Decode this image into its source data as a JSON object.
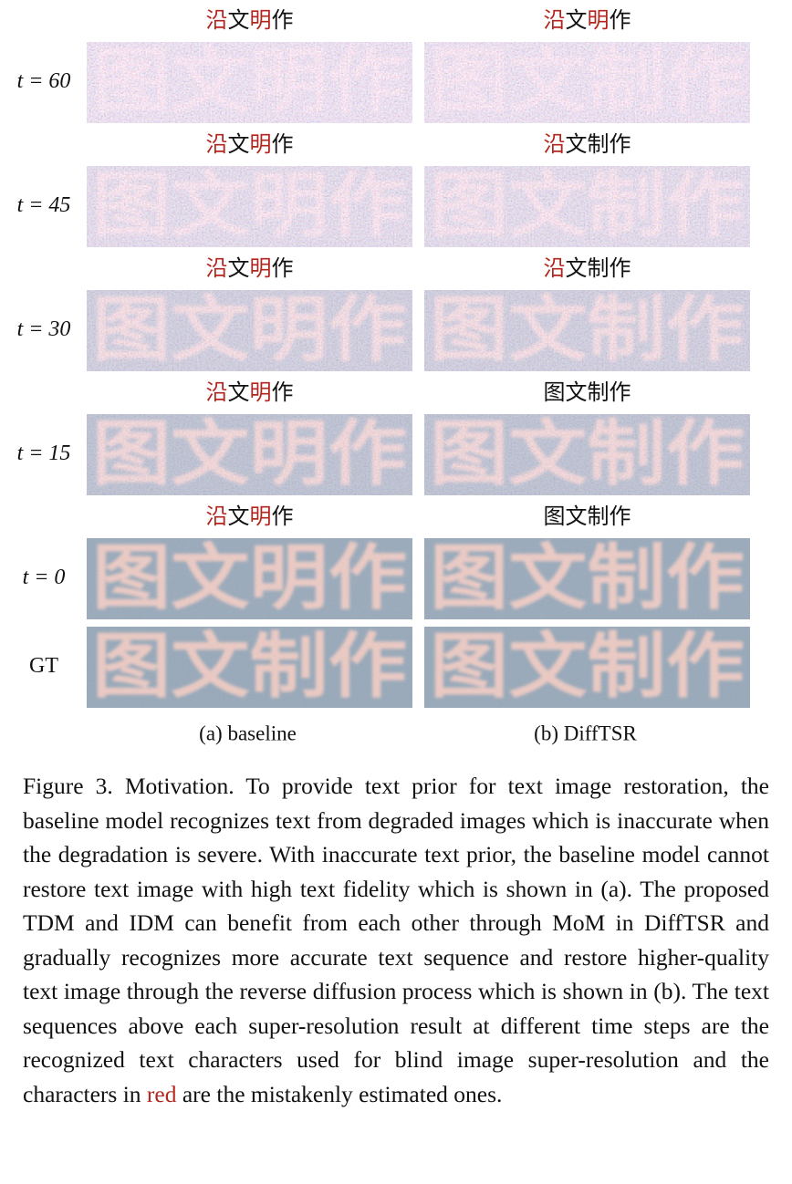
{
  "figure": {
    "rows": [
      {
        "label": "t = 60",
        "baseline": {
          "recognized": [
            {
              "text": "沿",
              "color": "#b3261e"
            },
            {
              "text": "文",
              "color": "#111111"
            },
            {
              "text": "明",
              "color": "#b3261e"
            },
            {
              "text": "作",
              "color": "#111111"
            }
          ],
          "image_text": "图文明作"
        },
        "difftsr": {
          "recognized": [
            {
              "text": "沿",
              "color": "#b3261e"
            },
            {
              "text": "文",
              "color": "#111111"
            },
            {
              "text": "明",
              "color": "#b3261e"
            },
            {
              "text": "作",
              "color": "#111111"
            }
          ],
          "image_text": "图文制作"
        }
      },
      {
        "label": "t = 45",
        "baseline": {
          "recognized": [
            {
              "text": "沿",
              "color": "#b3261e"
            },
            {
              "text": "文",
              "color": "#111111"
            },
            {
              "text": "明",
              "color": "#b3261e"
            },
            {
              "text": "作",
              "color": "#111111"
            }
          ],
          "image_text": "图文明作"
        },
        "difftsr": {
          "recognized": [
            {
              "text": "沿",
              "color": "#b3261e"
            },
            {
              "text": "文制作",
              "color": "#111111"
            }
          ],
          "image_text": "图文制作"
        }
      },
      {
        "label": "t = 30",
        "baseline": {
          "recognized": [
            {
              "text": "沿",
              "color": "#b3261e"
            },
            {
              "text": "文",
              "color": "#111111"
            },
            {
              "text": "明",
              "color": "#b3261e"
            },
            {
              "text": "作",
              "color": "#111111"
            }
          ],
          "image_text": "图文明作"
        },
        "difftsr": {
          "recognized": [
            {
              "text": "沿",
              "color": "#b3261e"
            },
            {
              "text": "文制作",
              "color": "#111111"
            }
          ],
          "image_text": "图文制作"
        }
      },
      {
        "label": "t = 15",
        "baseline": {
          "recognized": [
            {
              "text": "沿",
              "color": "#b3261e"
            },
            {
              "text": "文",
              "color": "#111111"
            },
            {
              "text": "明",
              "color": "#b3261e"
            },
            {
              "text": "作",
              "color": "#111111"
            }
          ],
          "image_text": "图文明作"
        },
        "difftsr": {
          "recognized": [
            {
              "text": "图文制作",
              "color": "#111111"
            }
          ],
          "image_text": "图文制作"
        }
      },
      {
        "label": "t = 0",
        "baseline": {
          "recognized": [
            {
              "text": "沿",
              "color": "#b3261e"
            },
            {
              "text": "文",
              "color": "#111111"
            },
            {
              "text": "明",
              "color": "#b3261e"
            },
            {
              "text": "作",
              "color": "#111111"
            }
          ],
          "image_text": "图文明作"
        },
        "difftsr": {
          "recognized": [
            {
              "text": "图文制作",
              "color": "#111111"
            }
          ],
          "image_text": "图文制作"
        }
      },
      {
        "label": "GT",
        "baseline": {
          "recognized": [],
          "image_text": "图文制作"
        },
        "difftsr": {
          "recognized": [],
          "image_text": "图文制作"
        }
      }
    ],
    "column_labels": [
      "(a) baseline",
      "(b) DiffTSR"
    ]
  },
  "caption": [
    {
      "text": "Figure 3. Motivation. To provide text prior for text image restoration, the baseline model recognizes text from degraded images which is inaccurate when the degradation is severe.  With inaccurate text prior, the baseline model cannot restore text image with high text fidelity which is shown in (a). The proposed TDM and IDM can benefit from each other through MoM in DiffTSR and gradually recognizes more accurate text sequence and restore higher-quality text image through the reverse diffusion process which is shown in (b).  The text sequences above each super-resolution result at different time steps are the recognized text characters used for blind image super-resolution and the characters in ",
      "color": "#111111"
    },
    {
      "text": "red",
      "color": "#b3261e"
    },
    {
      "text": " are the mistakenly estimated ones.",
      "color": "#111111"
    }
  ]
}
